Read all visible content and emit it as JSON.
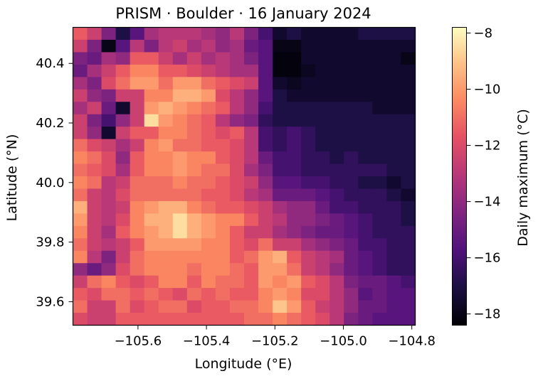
{
  "chart_data": {
    "type": "heatmap",
    "title": "PRISM · Boulder · 16 January 2024",
    "xlabel": "Longitude (°E)",
    "ylabel": "Latitude (°N)",
    "colorbar_label": "Daily maximum (°C)",
    "colormap": "magma",
    "xlim": [
      -105.79,
      -104.79
    ],
    "ylim": [
      39.521,
      40.521
    ],
    "vmin": -18.4,
    "vmax": -7.8,
    "x_ticks": [
      -105.6,
      -105.4,
      -105.2,
      -105.0,
      -104.8
    ],
    "x_tick_labels": [
      "−105.6",
      "−105.4",
      "−105.2",
      "−105.0",
      "−104.8"
    ],
    "y_ticks": [
      39.6,
      39.8,
      40.0,
      40.2,
      40.4
    ],
    "y_tick_labels": [
      "39.6",
      "39.8",
      "40.0",
      "40.2",
      "40.4"
    ],
    "colorbar_ticks": [
      -8,
      -10,
      -12,
      -14,
      -16,
      -18
    ],
    "colorbar_tick_labels": [
      "−8",
      "−10",
      "−12",
      "−14",
      "−16",
      "−18"
    ],
    "grid": false,
    "grid_shape": [
      24,
      24
    ],
    "grid_order": "rows listed from north (top) to south (bottom), columns west to east",
    "values": [
      [
        -11.5,
        -12.5,
        -14.5,
        -17.0,
        -15.5,
        -13.5,
        -13.0,
        -13.0,
        -13.0,
        -13.5,
        -14.0,
        -13.0,
        -14.5,
        -16.0,
        -17.5,
        -17.0,
        -17.5,
        -17.5,
        -17.5,
        -17.5,
        -17.0,
        -17.0,
        -17.0,
        -17.0
      ],
      [
        -12.5,
        -14.5,
        -18.0,
        -15.5,
        -13.0,
        -14.5,
        -13.0,
        -12.5,
        -13.5,
        -13.0,
        -14.0,
        -13.5,
        -15.0,
        -15.5,
        -18.0,
        -18.0,
        -17.5,
        -17.5,
        -17.5,
        -17.5,
        -17.5,
        -17.5,
        -17.5,
        -17.5
      ],
      [
        -14.5,
        -15.0,
        -13.5,
        -14.0,
        -11.5,
        -11.5,
        -12.5,
        -13.5,
        -12.5,
        -13.5,
        -13.0,
        -13.5,
        -14.5,
        -15.5,
        -18.2,
        -18.2,
        -17.5,
        -17.5,
        -17.5,
        -17.5,
        -17.5,
        -17.5,
        -17.5,
        -18.0
      ],
      [
        -15.0,
        -13.5,
        -12.5,
        -11.5,
        -10.5,
        -10.5,
        -11.5,
        -11.5,
        -12.0,
        -12.5,
        -13.0,
        -13.5,
        -13.5,
        -15.5,
        -18.2,
        -18.2,
        -17.8,
        -17.5,
        -17.5,
        -17.5,
        -17.5,
        -17.5,
        -17.5,
        -17.5
      ],
      [
        -13.5,
        -14.5,
        -12.0,
        -11.0,
        -10.0,
        -10.0,
        -11.0,
        -10.0,
        -10.0,
        -11.0,
        -11.5,
        -12.0,
        -12.5,
        -15.5,
        -17.5,
        -17.8,
        -17.5,
        -17.5,
        -17.5,
        -17.5,
        -17.5,
        -17.5,
        -17.5,
        -17.5
      ],
      [
        -12.5,
        -14.0,
        -14.5,
        -12.5,
        -12.5,
        -10.5,
        -10.5,
        -9.5,
        -9.5,
        -10.0,
        -12.0,
        -13.0,
        -14.0,
        -15.5,
        -17.0,
        -17.5,
        -17.5,
        -17.5,
        -17.5,
        -17.5,
        -17.5,
        -17.5,
        -17.5,
        -17.5
      ],
      [
        -13.5,
        -12.5,
        -15.0,
        -17.5,
        -12.5,
        -10.0,
        -9.5,
        -10.0,
        -10.5,
        -11.0,
        -11.5,
        -13.0,
        -14.0,
        -16.0,
        -17.0,
        -17.0,
        -17.0,
        -17.0,
        -17.0,
        -17.0,
        -17.0,
        -17.5,
        -17.5,
        -17.5
      ],
      [
        -12.5,
        -14.5,
        -16.0,
        -14.0,
        -12.5,
        -8.5,
        -10.0,
        -10.5,
        -11.0,
        -11.5,
        -13.0,
        -14.0,
        -14.5,
        -16.5,
        -17.0,
        -17.0,
        -17.0,
        -17.0,
        -17.0,
        -17.0,
        -17.0,
        -17.0,
        -17.0,
        -17.0
      ],
      [
        -12.5,
        -14.0,
        -17.5,
        -12.5,
        -11.5,
        -11.5,
        -10.5,
        -10.5,
        -11.0,
        -11.5,
        -12.0,
        -11.5,
        -13.0,
        -16.0,
        -16.5,
        -16.0,
        -16.5,
        -17.0,
        -17.0,
        -17.0,
        -17.0,
        -17.0,
        -17.0,
        -17.0
      ],
      [
        -11.0,
        -12.0,
        -12.5,
        -13.5,
        -12.5,
        -10.5,
        -10.0,
        -11.0,
        -11.0,
        -11.5,
        -11.5,
        -12.0,
        -13.0,
        -16.0,
        -16.5,
        -16.0,
        -16.5,
        -17.0,
        -17.0,
        -17.0,
        -17.0,
        -17.0,
        -17.0,
        -17.0
      ],
      [
        -10.5,
        -11.0,
        -12.0,
        -14.0,
        -11.5,
        -10.5,
        -10.5,
        -10.0,
        -10.5,
        -10.5,
        -11.5,
        -12.0,
        -13.0,
        -15.0,
        -16.0,
        -16.0,
        -16.5,
        -16.5,
        -17.0,
        -16.5,
        -17.0,
        -17.0,
        -17.0,
        -17.0
      ],
      [
        -11.0,
        -11.5,
        -12.0,
        -13.5,
        -11.5,
        -10.5,
        -10.5,
        -10.0,
        -10.5,
        -11.0,
        -11.0,
        -12.0,
        -13.5,
        -14.5,
        -16.0,
        -16.0,
        -16.5,
        -16.5,
        -16.5,
        -16.5,
        -16.5,
        -16.5,
        -17.0,
        -17.0
      ],
      [
        -10.5,
        -11.0,
        -13.0,
        -12.5,
        -11.0,
        -11.0,
        -11.0,
        -10.5,
        -11.0,
        -11.0,
        -11.5,
        -12.0,
        -12.5,
        -14.0,
        -15.5,
        -15.5,
        -16.0,
        -16.0,
        -16.5,
        -16.5,
        -17.0,
        -17.0,
        -17.5,
        -17.0
      ],
      [
        -11.0,
        -12.5,
        -13.0,
        -12.0,
        -11.0,
        -11.0,
        -11.0,
        -11.0,
        -11.0,
        -11.5,
        -11.5,
        -12.0,
        -13.0,
        -13.5,
        -15.0,
        -15.0,
        -15.0,
        -15.5,
        -16.0,
        -16.5,
        -16.5,
        -16.5,
        -17.0,
        -17.5
      ],
      [
        -9.5,
        -12.5,
        -13.0,
        -12.5,
        -10.5,
        -10.0,
        -9.5,
        -9.5,
        -10.5,
        -11.0,
        -11.5,
        -11.5,
        -12.0,
        -12.5,
        -13.5,
        -14.0,
        -14.0,
        -15.0,
        -16.0,
        -16.0,
        -16.5,
        -16.5,
        -16.5,
        -17.0
      ],
      [
        -10.0,
        -12.5,
        -13.0,
        -12.0,
        -10.5,
        -9.5,
        -9.5,
        -8.5,
        -9.5,
        -10.0,
        -10.5,
        -10.5,
        -11.5,
        -12.5,
        -13.0,
        -14.0,
        -14.0,
        -14.5,
        -15.0,
        -15.5,
        -16.0,
        -16.5,
        -16.5,
        -17.0
      ],
      [
        -10.5,
        -12.5,
        -13.5,
        -11.5,
        -10.5,
        -10.0,
        -9.5,
        -8.5,
        -9.5,
        -10.0,
        -10.5,
        -11.5,
        -12.5,
        -12.5,
        -13.5,
        -14.0,
        -14.5,
        -15.0,
        -15.0,
        -15.5,
        -16.0,
        -16.5,
        -16.5,
        -16.5
      ],
      [
        -11.0,
        -12.5,
        -13.0,
        -12.5,
        -11.5,
        -10.0,
        -10.0,
        -10.0,
        -10.0,
        -10.5,
        -10.5,
        -11.5,
        -12.0,
        -11.0,
        -12.5,
        -12.5,
        -13.5,
        -14.0,
        -14.5,
        -15.0,
        -16.0,
        -16.0,
        -16.5,
        -16.5
      ],
      [
        -10.5,
        -13.0,
        -14.5,
        -12.5,
        -11.0,
        -10.5,
        -10.5,
        -10.5,
        -10.5,
        -10.5,
        -10.5,
        -11.5,
        -11.0,
        -10.0,
        -9.5,
        -11.5,
        -12.5,
        -13.0,
        -13.5,
        -15.0,
        -15.5,
        -16.0,
        -16.5,
        -16.5
      ],
      [
        -14.0,
        -15.0,
        -14.0,
        -12.0,
        -11.0,
        -10.5,
        -10.5,
        -10.5,
        -11.0,
        -10.5,
        -10.5,
        -11.0,
        -11.5,
        -10.0,
        -10.0,
        -11.0,
        -12.5,
        -13.0,
        -14.0,
        -15.0,
        -15.5,
        -16.0,
        -16.5,
        -16.5
      ],
      [
        -12.5,
        -11.0,
        -10.5,
        -11.5,
        -12.0,
        -11.5,
        -10.5,
        -10.5,
        -11.5,
        -10.5,
        -11.0,
        -11.0,
        -11.5,
        -10.0,
        -10.5,
        -10.0,
        -11.5,
        -12.0,
        -13.0,
        -14.5,
        -15.0,
        -15.0,
        -15.5,
        -16.0
      ],
      [
        -11.5,
        -12.0,
        -11.0,
        -11.0,
        -11.5,
        -11.0,
        -11.5,
        -12.0,
        -11.0,
        -11.5,
        -11.0,
        -11.5,
        -11.5,
        -10.5,
        -10.0,
        -10.5,
        -12.0,
        -12.0,
        -13.0,
        -14.0,
        -15.5,
        -15.0,
        -15.5,
        -15.5
      ],
      [
        -11.0,
        -12.5,
        -12.5,
        -11.0,
        -12.0,
        -11.5,
        -11.0,
        -11.0,
        -12.0,
        -11.5,
        -11.5,
        -11.0,
        -11.0,
        -10.5,
        -9.0,
        -10.0,
        -11.5,
        -12.5,
        -13.0,
        -14.0,
        -15.0,
        -15.0,
        -15.5,
        -15.5
      ],
      [
        -12.0,
        -12.5,
        -12.5,
        -11.5,
        -11.5,
        -11.5,
        -11.5,
        -11.5,
        -11.5,
        -11.5,
        -11.5,
        -11.5,
        -11.0,
        -11.0,
        -10.5,
        -11.0,
        -11.5,
        -12.0,
        -13.0,
        -14.5,
        -15.0,
        -15.5,
        -15.5,
        -15.5
      ]
    ]
  }
}
